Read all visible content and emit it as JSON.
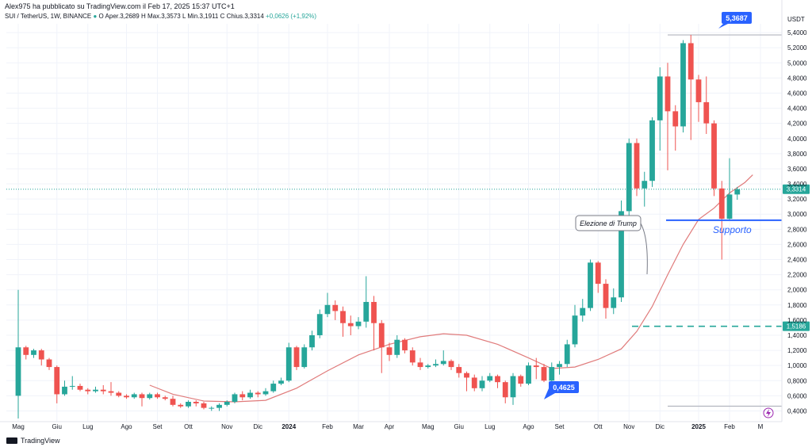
{
  "header": {
    "published_by": "Alex975 ha pubblicato su TradingView.com il Feb 17, 2025 15:37 UTC+1",
    "symbol": "SUI / TetherUS, 1W, BINANCE",
    "open_label": "O",
    "open": "Aper.3,2689",
    "high_label": "H",
    "high": "Max.3,3573",
    "low_label": "L",
    "low": "Min.3,1911",
    "close_label": "C",
    "close": "Chius.3,3314",
    "change": "+0,0626 (+1,92%)"
  },
  "footer": {
    "brand": "TradingView"
  },
  "colors": {
    "up": "#26a69a",
    "down": "#ef5350",
    "ma": "#e07b7b",
    "support": "#2962ff",
    "level": "#26a69a",
    "range": "#b2b5be"
  },
  "chart_data": {
    "type": "candlestick",
    "currency": "USDT",
    "ylim": [
      0.3,
      5.6
    ],
    "y_ticks": [
      "0,4000",
      "0,6000",
      "0,8000",
      "1,0000",
      "1,2000",
      "1,4000",
      "1,6000",
      "1,8000",
      "2,0000",
      "2,2000",
      "2,4000",
      "2,6000",
      "2,8000",
      "3,0000",
      "3,2000",
      "3,4000",
      "3,6000",
      "3,8000",
      "4,0000",
      "4,2000",
      "4,4000",
      "4,6000",
      "4,8000",
      "5,0000",
      "5,2000",
      "5,4000"
    ],
    "x_labels": [
      {
        "label": "Mag",
        "i": 0
      },
      {
        "label": "Giu",
        "i": 5
      },
      {
        "label": "Lug",
        "i": 9
      },
      {
        "label": "Ago",
        "i": 14
      },
      {
        "label": "Set",
        "i": 18
      },
      {
        "label": "Ott",
        "i": 22
      },
      {
        "label": "Nov",
        "i": 27
      },
      {
        "label": "Dic",
        "i": 31
      },
      {
        "label": "2024",
        "i": 35
      },
      {
        "label": "Feb",
        "i": 40
      },
      {
        "label": "Mar",
        "i": 44
      },
      {
        "label": "Apr",
        "i": 48
      },
      {
        "label": "Mag",
        "i": 53
      },
      {
        "label": "Giu",
        "i": 57
      },
      {
        "label": "Lug",
        "i": 61
      },
      {
        "label": "Ago",
        "i": 66
      },
      {
        "label": "Set",
        "i": 70
      },
      {
        "label": "Ott",
        "i": 75
      },
      {
        "label": "Nov",
        "i": 79
      },
      {
        "label": "Dic",
        "i": 83
      },
      {
        "label": "2025",
        "i": 88
      },
      {
        "label": "Feb",
        "i": 92
      },
      {
        "label": "M",
        "i": 96
      }
    ],
    "candles": [
      [
        0.6,
        1.24,
        0.3,
        2.0
      ],
      [
        1.24,
        1.14,
        1.08,
        1.26
      ],
      [
        1.14,
        1.2,
        1.1,
        1.22
      ],
      [
        1.2,
        1.08,
        1.0,
        1.22
      ],
      [
        1.08,
        0.98,
        0.94,
        1.1
      ],
      [
        0.98,
        0.62,
        0.5,
        1.0
      ],
      [
        0.62,
        0.72,
        0.6,
        0.8
      ],
      [
        0.72,
        0.73,
        0.68,
        0.86
      ],
      [
        0.73,
        0.68,
        0.66,
        0.76
      ],
      [
        0.68,
        0.66,
        0.62,
        0.7
      ],
      [
        0.66,
        0.68,
        0.64,
        0.72
      ],
      [
        0.68,
        0.66,
        0.62,
        0.74
      ],
      [
        0.66,
        0.64,
        0.6,
        0.78
      ],
      [
        0.64,
        0.6,
        0.58,
        0.66
      ],
      [
        0.6,
        0.58,
        0.56,
        0.62
      ],
      [
        0.58,
        0.62,
        0.56,
        0.64
      ],
      [
        0.62,
        0.57,
        0.46,
        0.64
      ],
      [
        0.57,
        0.62,
        0.55,
        0.64
      ],
      [
        0.62,
        0.58,
        0.56,
        0.64
      ],
      [
        0.58,
        0.56,
        0.54,
        0.6
      ],
      [
        0.56,
        0.48,
        0.46,
        0.6
      ],
      [
        0.48,
        0.46,
        0.44,
        0.5
      ],
      [
        0.46,
        0.52,
        0.44,
        0.54
      ],
      [
        0.52,
        0.5,
        0.46,
        0.54
      ],
      [
        0.5,
        0.44,
        0.42,
        0.52
      ],
      [
        0.44,
        0.44,
        0.4,
        0.46
      ],
      [
        0.44,
        0.48,
        0.4,
        0.5
      ],
      [
        0.48,
        0.52,
        0.46,
        0.54
      ],
      [
        0.52,
        0.62,
        0.5,
        0.64
      ],
      [
        0.62,
        0.58,
        0.54,
        0.66
      ],
      [
        0.58,
        0.64,
        0.56,
        0.68
      ],
      [
        0.64,
        0.62,
        0.58,
        0.66
      ],
      [
        0.62,
        0.66,
        0.6,
        0.7
      ],
      [
        0.66,
        0.76,
        0.64,
        0.8
      ],
      [
        0.76,
        0.8,
        0.74,
        0.84
      ],
      [
        0.8,
        1.24,
        0.78,
        1.3
      ],
      [
        1.24,
        0.98,
        0.94,
        1.26
      ],
      [
        0.98,
        1.24,
        0.96,
        1.28
      ],
      [
        1.24,
        1.4,
        1.2,
        1.46
      ],
      [
        1.4,
        1.68,
        1.36,
        1.74
      ],
      [
        1.68,
        1.8,
        1.64,
        1.96
      ],
      [
        1.8,
        1.72,
        1.6,
        1.86
      ],
      [
        1.72,
        1.56,
        1.38,
        1.78
      ],
      [
        1.56,
        1.52,
        1.4,
        1.66
      ],
      [
        1.52,
        1.58,
        1.48,
        1.64
      ],
      [
        1.58,
        1.84,
        1.5,
        2.18
      ],
      [
        1.84,
        1.56,
        1.2,
        1.92
      ],
      [
        1.56,
        1.24,
        0.9,
        1.6
      ],
      [
        1.24,
        1.14,
        1.06,
        1.3
      ],
      [
        1.14,
        1.34,
        1.1,
        1.4
      ],
      [
        1.34,
        1.2,
        1.16,
        1.36
      ],
      [
        1.2,
        1.04,
        1.0,
        1.24
      ],
      [
        1.04,
        0.98,
        0.94,
        1.1
      ],
      [
        0.98,
        1.0,
        0.96,
        1.02
      ],
      [
        1.0,
        1.02,
        0.98,
        1.08
      ],
      [
        1.02,
        1.06,
        1.0,
        1.2
      ],
      [
        1.06,
        0.98,
        0.94,
        1.08
      ],
      [
        0.98,
        0.9,
        0.84,
        1.02
      ],
      [
        0.9,
        0.84,
        0.66,
        0.92
      ],
      [
        0.84,
        0.7,
        0.66,
        0.88
      ],
      [
        0.7,
        0.8,
        0.66,
        0.86
      ],
      [
        0.8,
        0.86,
        0.78,
        0.9
      ],
      [
        0.86,
        0.78,
        0.7,
        0.88
      ],
      [
        0.78,
        0.58,
        0.5,
        0.8
      ],
      [
        0.58,
        0.86,
        0.48,
        0.9
      ],
      [
        0.86,
        0.76,
        0.72,
        0.88
      ],
      [
        0.76,
        1.0,
        0.74,
        1.04
      ],
      [
        1.0,
        0.98,
        0.82,
        1.1
      ],
      [
        0.98,
        0.8,
        0.78,
        1.02
      ],
      [
        0.8,
        0.98,
        0.78,
        1.04
      ],
      [
        0.98,
        1.02,
        0.88,
        1.06
      ],
      [
        1.02,
        1.28,
        0.98,
        1.34
      ],
      [
        1.28,
        1.66,
        1.24,
        1.8
      ],
      [
        1.66,
        1.76,
        1.58,
        1.88
      ],
      [
        1.76,
        2.36,
        1.72,
        2.4
      ],
      [
        2.36,
        2.08,
        1.96,
        2.38
      ],
      [
        2.08,
        1.76,
        1.62,
        2.14
      ],
      [
        1.76,
        1.9,
        1.68,
        2.02
      ],
      [
        1.9,
        3.04,
        1.84,
        3.18
      ],
      [
        3.04,
        3.94,
        2.9,
        4.0
      ],
      [
        3.94,
        3.34,
        3.24,
        4.0
      ],
      [
        3.34,
        3.44,
        3.1,
        3.56
      ],
      [
        3.44,
        4.24,
        3.36,
        4.28
      ],
      [
        4.24,
        4.82,
        3.84,
        4.94
      ],
      [
        4.82,
        4.36,
        3.58,
        5.0
      ],
      [
        4.36,
        4.16,
        3.84,
        4.44
      ],
      [
        4.16,
        5.26,
        4.08,
        5.3
      ],
      [
        5.26,
        4.78,
        3.98,
        5.37
      ],
      [
        4.78,
        4.48,
        4.22,
        4.84
      ],
      [
        4.48,
        4.2,
        4.06,
        4.82
      ],
      [
        4.2,
        3.34,
        3.24,
        4.24
      ],
      [
        3.34,
        2.94,
        2.4,
        3.44
      ],
      [
        2.94,
        3.26,
        2.92,
        3.74
      ],
      [
        3.26,
        3.33,
        3.19,
        3.36
      ]
    ],
    "moving_average": [
      [
        17,
        0.74
      ],
      [
        20,
        0.62
      ],
      [
        24,
        0.53
      ],
      [
        28,
        0.52
      ],
      [
        32,
        0.54
      ],
      [
        36,
        0.7
      ],
      [
        40,
        0.93
      ],
      [
        44,
        1.14
      ],
      [
        48,
        1.28
      ],
      [
        52,
        1.38
      ],
      [
        55,
        1.42
      ],
      [
        58,
        1.4
      ],
      [
        62,
        1.28
      ],
      [
        66,
        1.1
      ],
      [
        69,
        0.96
      ],
      [
        72,
        0.98
      ],
      [
        75,
        1.08
      ],
      [
        78,
        1.22
      ],
      [
        80,
        1.45
      ],
      [
        82,
        1.78
      ],
      [
        84,
        2.2
      ],
      [
        86,
        2.6
      ],
      [
        88,
        2.93
      ],
      [
        90,
        3.08
      ],
      [
        92,
        3.28
      ],
      [
        94,
        3.42
      ],
      [
        95,
        3.52
      ]
    ],
    "current_price": "3,3314",
    "annotations": {
      "peak_label": "5,3687",
      "low_label": "0,4625",
      "trump_label": "Elezione di Trump",
      "support_label": "Supporto",
      "level_label": "1,5186"
    }
  }
}
